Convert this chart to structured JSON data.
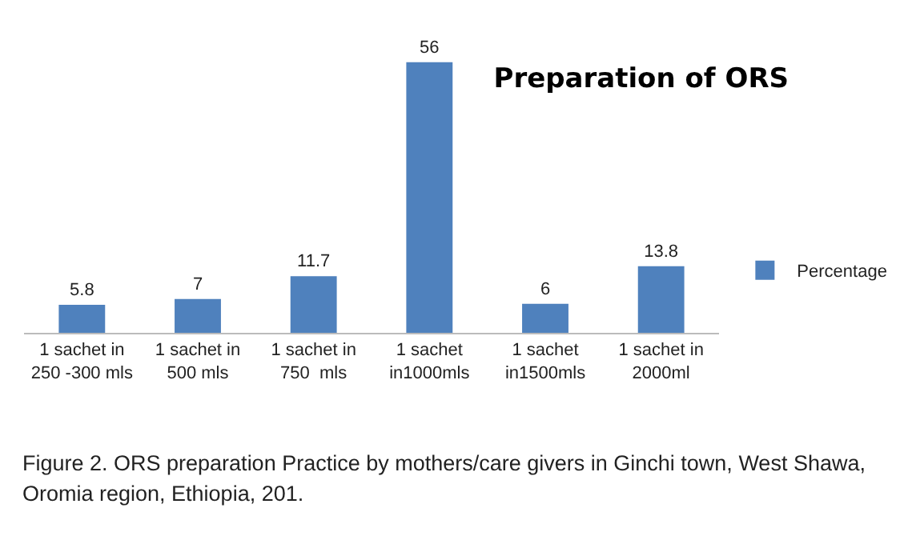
{
  "chart_data": {
    "type": "bar",
    "title": "Preparation of ORS",
    "categories": [
      "1 sachet in 250 -300 mls",
      "1 sachet in 500 mls",
      "1 sachet in 750  mls",
      "1 sachet in1000mls",
      "1 sachet in1500mls",
      "1 sachet in 2000ml"
    ],
    "series": [
      {
        "name": "Percentage",
        "color": "#4f81bd",
        "values": [
          5.8,
          7,
          11.7,
          56,
          6,
          13.8
        ]
      }
    ],
    "data_labels": true,
    "legend": "right",
    "grid": false,
    "annotations": [
      "Figure 2. ORS preparation Practice by mothers/care givers in Ginchi town, West Shawa, Oromia region, Ethiopia, 201."
    ]
  }
}
